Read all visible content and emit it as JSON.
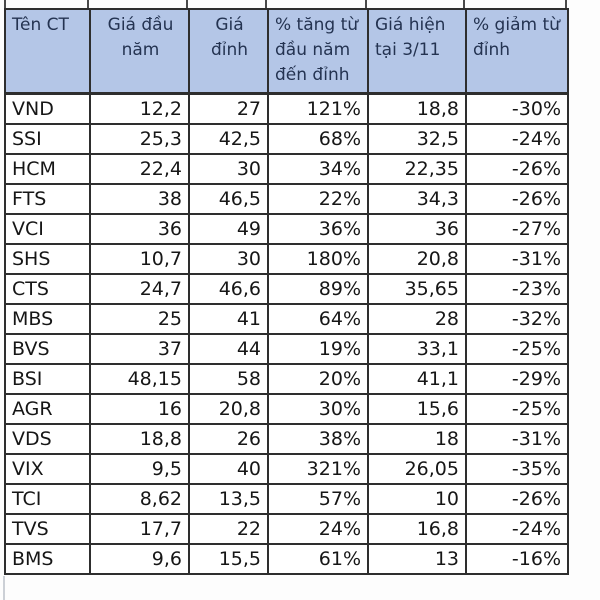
{
  "table": {
    "columns": [
      {
        "label": "Tên CT",
        "align_header": "left",
        "align_data": "left"
      },
      {
        "label": "Giá đầu\nnăm",
        "align_header": "center",
        "align_data": "right"
      },
      {
        "label": "Giá\nđỉnh",
        "align_header": "center",
        "align_data": "right"
      },
      {
        "label": "% tăng từ\nđầu năm\nđến đỉnh",
        "align_header": "left",
        "align_data": "right"
      },
      {
        "label": "Giá hiện\ntại 3/11",
        "align_header": "left",
        "align_data": "right"
      },
      {
        "label": "% giảm từ\nđỉnh",
        "align_header": "left",
        "align_data": "right"
      }
    ],
    "rows": [
      [
        "VND",
        "12,2",
        "27",
        "121%",
        "18,8",
        "-30%"
      ],
      [
        "SSI",
        "25,3",
        "42,5",
        "68%",
        "32,5",
        "-24%"
      ],
      [
        "HCM",
        "22,4",
        "30",
        "34%",
        "22,35",
        "-26%"
      ],
      [
        "FTS",
        "38",
        "46,5",
        "22%",
        "34,3",
        "-26%"
      ],
      [
        "VCI",
        "36",
        "49",
        "36%",
        "36",
        "-27%"
      ],
      [
        "SHS",
        "10,7",
        "30",
        "180%",
        "20,8",
        "-31%"
      ],
      [
        "CTS",
        "24,7",
        "46,6",
        "89%",
        "35,65",
        "-23%"
      ],
      [
        "MBS",
        "25",
        "41",
        "64%",
        "28",
        "-32%"
      ],
      [
        "BVS",
        "37",
        "44",
        "19%",
        "33,1",
        "-25%"
      ],
      [
        "BSI",
        "48,15",
        "58",
        "20%",
        "41,1",
        "-29%"
      ],
      [
        "AGR",
        "16",
        "20,8",
        "30%",
        "15,6",
        "-25%"
      ],
      [
        "VDS",
        "18,8",
        "26",
        "38%",
        "18",
        "-31%"
      ],
      [
        "VIX",
        "9,5",
        "40",
        "321%",
        "26,05",
        "-35%"
      ],
      [
        "TCI",
        "8,62",
        "13,5",
        "57%",
        "10",
        "-26%"
      ],
      [
        "TVS",
        "17,7",
        "22",
        "24%",
        "16,8",
        "-24%"
      ],
      [
        "BMS",
        "9,6",
        "15,5",
        "61%",
        "13",
        "-16%"
      ]
    ]
  },
  "colors": {
    "header_bg": "#b4c6e7",
    "header_text": "#243351",
    "cell_border": "#2e2e2e",
    "data_text": "#161616",
    "gridline_faint": "#ccd0d6",
    "page_bg": "#fdfdfd"
  }
}
